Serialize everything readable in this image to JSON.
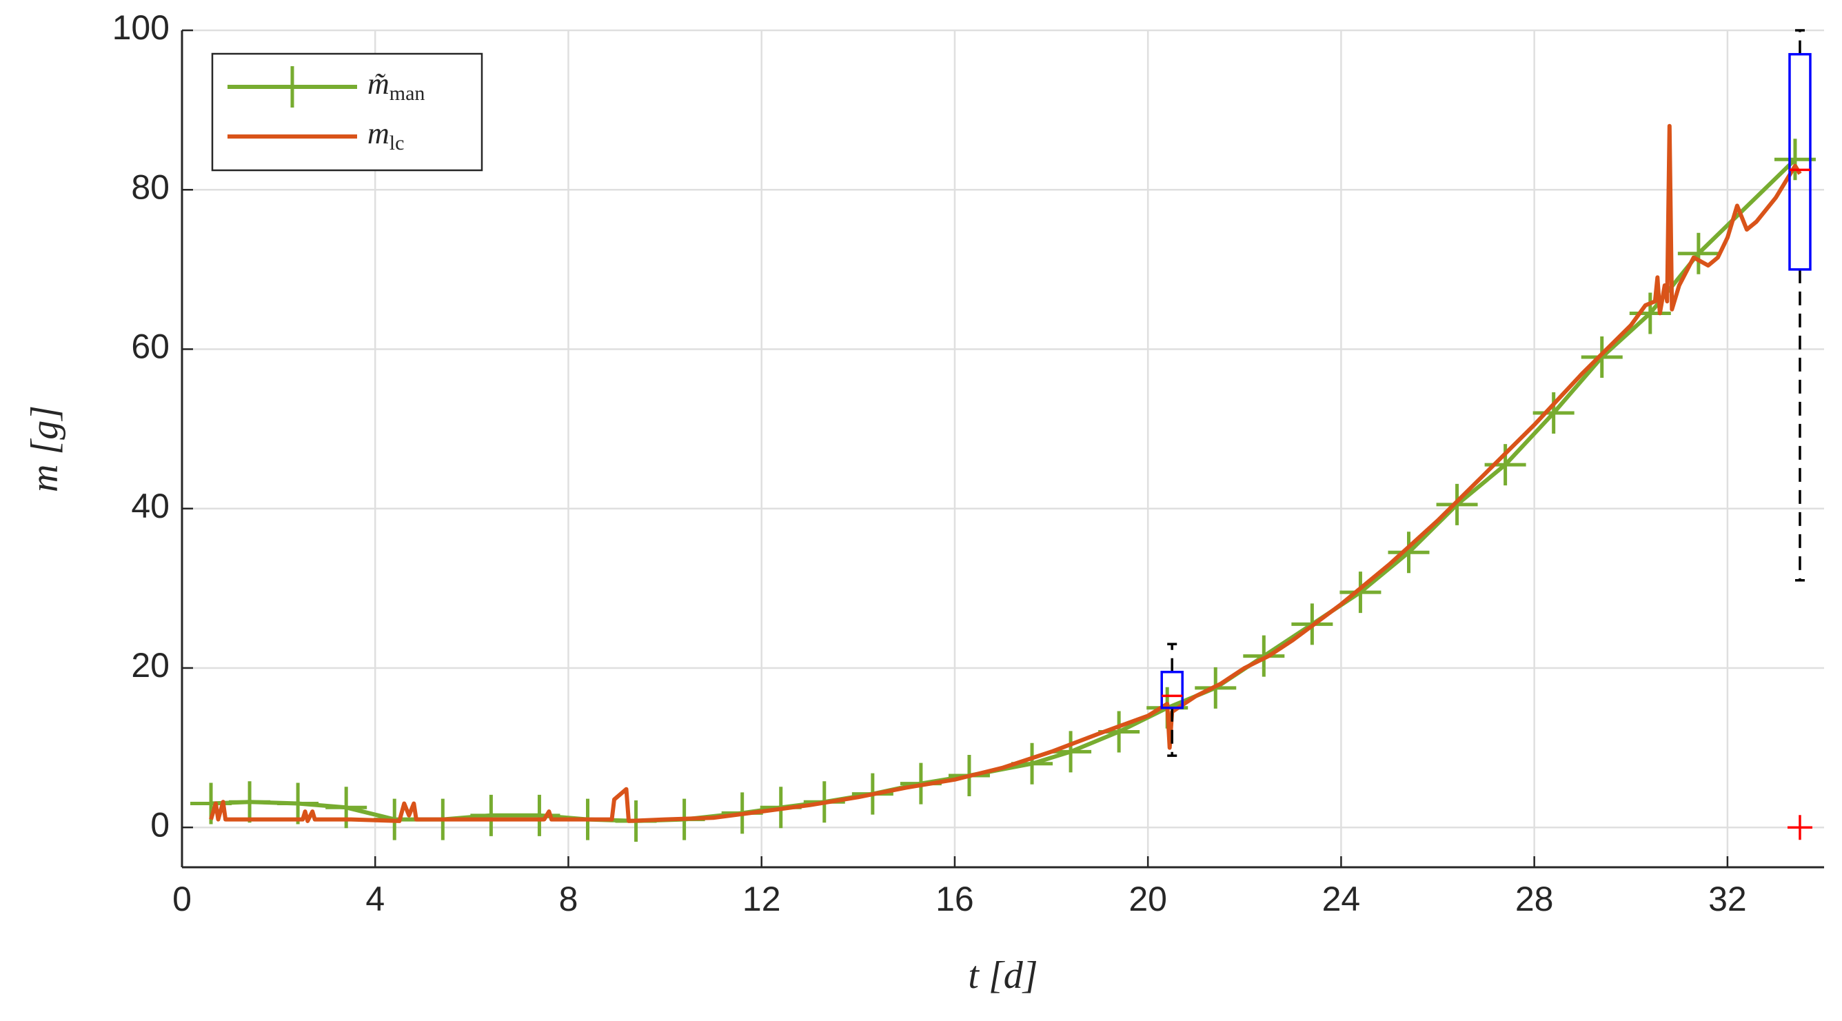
{
  "chart_data": {
    "type": "line",
    "xlabel": "t [d]",
    "ylabel": "m [g]",
    "xlim": [
      0,
      34
    ],
    "ylim": [
      -5,
      100
    ],
    "xticks": [
      0,
      4,
      8,
      12,
      16,
      20,
      24,
      28,
      32
    ],
    "yticks": [
      0,
      20,
      40,
      60,
      80,
      100
    ],
    "grid": true,
    "legend": "upper left",
    "series": [
      {
        "name": "m̃",
        "subscript": "man",
        "color": "#77ac30",
        "marker": "+",
        "x": [
          0.6,
          1.4,
          2.4,
          3.4,
          4.4,
          5.4,
          6.4,
          7.4,
          8.4,
          9.4,
          10.4,
          11.6,
          12.4,
          13.3,
          14.3,
          15.3,
          16.3,
          17.6,
          18.4,
          19.4,
          20.4,
          21.4,
          22.4,
          23.4,
          24.4,
          25.4,
          26.4,
          27.4,
          28.4,
          29.4,
          30.4,
          31.4,
          33.4
        ],
        "values": [
          3,
          3.2,
          3,
          2.5,
          1,
          1,
          1.5,
          1.5,
          1,
          0.8,
          1,
          1.8,
          2.5,
          3.2,
          4.2,
          5.5,
          6.5,
          8,
          9.5,
          12,
          15,
          17.5,
          21.5,
          25.5,
          29.5,
          34.5,
          40.5,
          45.5,
          52,
          59,
          64.5,
          72,
          83.8
        ]
      },
      {
        "name": "m",
        "subscript": "lc",
        "color": "#d95319",
        "x": [
          0.6,
          0.7,
          0.75,
          0.85,
          0.9,
          1.5,
          2.5,
          2.55,
          2.6,
          2.7,
          2.75,
          3.5,
          4.5,
          4.6,
          4.7,
          4.8,
          4.85,
          5.5,
          6.5,
          7.5,
          7.6,
          7.65,
          8.5,
          8.9,
          8.95,
          9.2,
          9.25,
          10,
          11,
          12,
          13,
          14,
          15,
          16,
          17,
          18,
          19,
          20,
          20.4,
          20.45,
          20.5,
          21,
          21.5,
          22,
          22.5,
          23,
          24,
          25,
          26,
          27,
          28,
          29,
          30,
          30.3,
          30.5,
          30.55,
          30.6,
          30.7,
          30.75,
          30.8,
          30.85,
          31,
          31.3,
          31.6,
          31.8,
          32,
          32.2,
          32.4,
          32.6,
          33,
          33.3,
          33.4,
          33.5
        ],
        "values": [
          1,
          3,
          1,
          3.2,
          1,
          1,
          1,
          2,
          0.8,
          2,
          1,
          1,
          0.8,
          3,
          1.5,
          3,
          1,
          1,
          1,
          1,
          2,
          1,
          1,
          1,
          3.5,
          4.8,
          0.8,
          1,
          1.2,
          2,
          2.8,
          3.8,
          5,
          6,
          7.5,
          9.5,
          11.8,
          14,
          15.5,
          10,
          14.5,
          16.5,
          18,
          20,
          21.5,
          23.5,
          28,
          33,
          38.5,
          44.5,
          50.5,
          57,
          63,
          65.5,
          66,
          69,
          64.5,
          68,
          66,
          88,
          65,
          68,
          71.5,
          70.5,
          71.5,
          74,
          78,
          75,
          76,
          79,
          82,
          83,
          82
        ]
      }
    ],
    "boxes": [
      {
        "x": 20.5,
        "whisker_low": 9,
        "q1": 15,
        "median": 16.5,
        "q3": 19.5,
        "whisker_high": 23
      },
      {
        "x": 33.5,
        "whisker_low": 31,
        "q1": 70,
        "median": 82.5,
        "q3": 97,
        "whisker_high": 100,
        "outliers": [
          0
        ]
      }
    ]
  }
}
